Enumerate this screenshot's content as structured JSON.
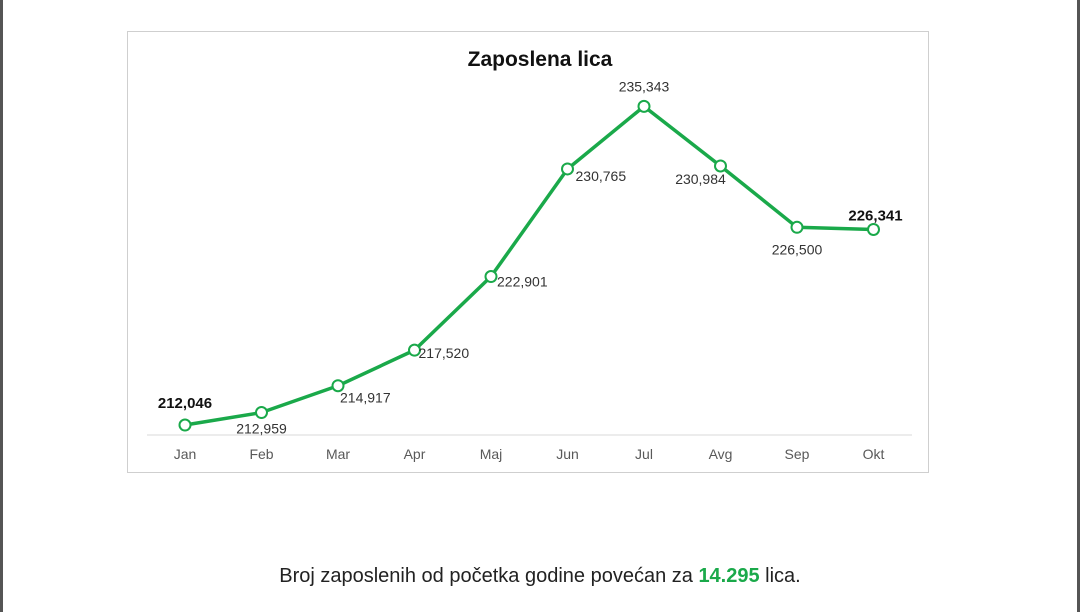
{
  "colors": {
    "line": "#1aa94a",
    "marker_fill": "#ffffff",
    "axis": "#d9d9d9",
    "tick_text": "#595959",
    "label_text": "#333333",
    "highlight": "#1aa94a"
  },
  "chart_data": {
    "type": "line",
    "title": "Zaposlena lica",
    "xlabel": "",
    "ylabel": "",
    "categories": [
      "Jan",
      "Feb",
      "Mar",
      "Apr",
      "Maj",
      "Jun",
      "Jul",
      "Avg",
      "Sep",
      "Okt"
    ],
    "series": [
      {
        "values": [
          212046,
          212959,
          214917,
          217520,
          222901,
          230765,
          235343,
          230984,
          226500,
          226341
        ],
        "data_labels": [
          "212,046",
          "212,959",
          "214,917",
          "217,520",
          "222,901",
          "230,765",
          "235,343",
          "230,984",
          "226,500",
          "226,341"
        ],
        "bold_labels": [
          true,
          false,
          false,
          false,
          false,
          false,
          false,
          false,
          false,
          true
        ]
      }
    ],
    "ylim": [
      210000,
      238000
    ],
    "grid": false,
    "legend": "none",
    "marker": "hollow-circle"
  },
  "caption": {
    "prefix": "Broj zaposlenih od početka godine povećan za ",
    "highlight": "14.295",
    "suffix": " lica."
  }
}
